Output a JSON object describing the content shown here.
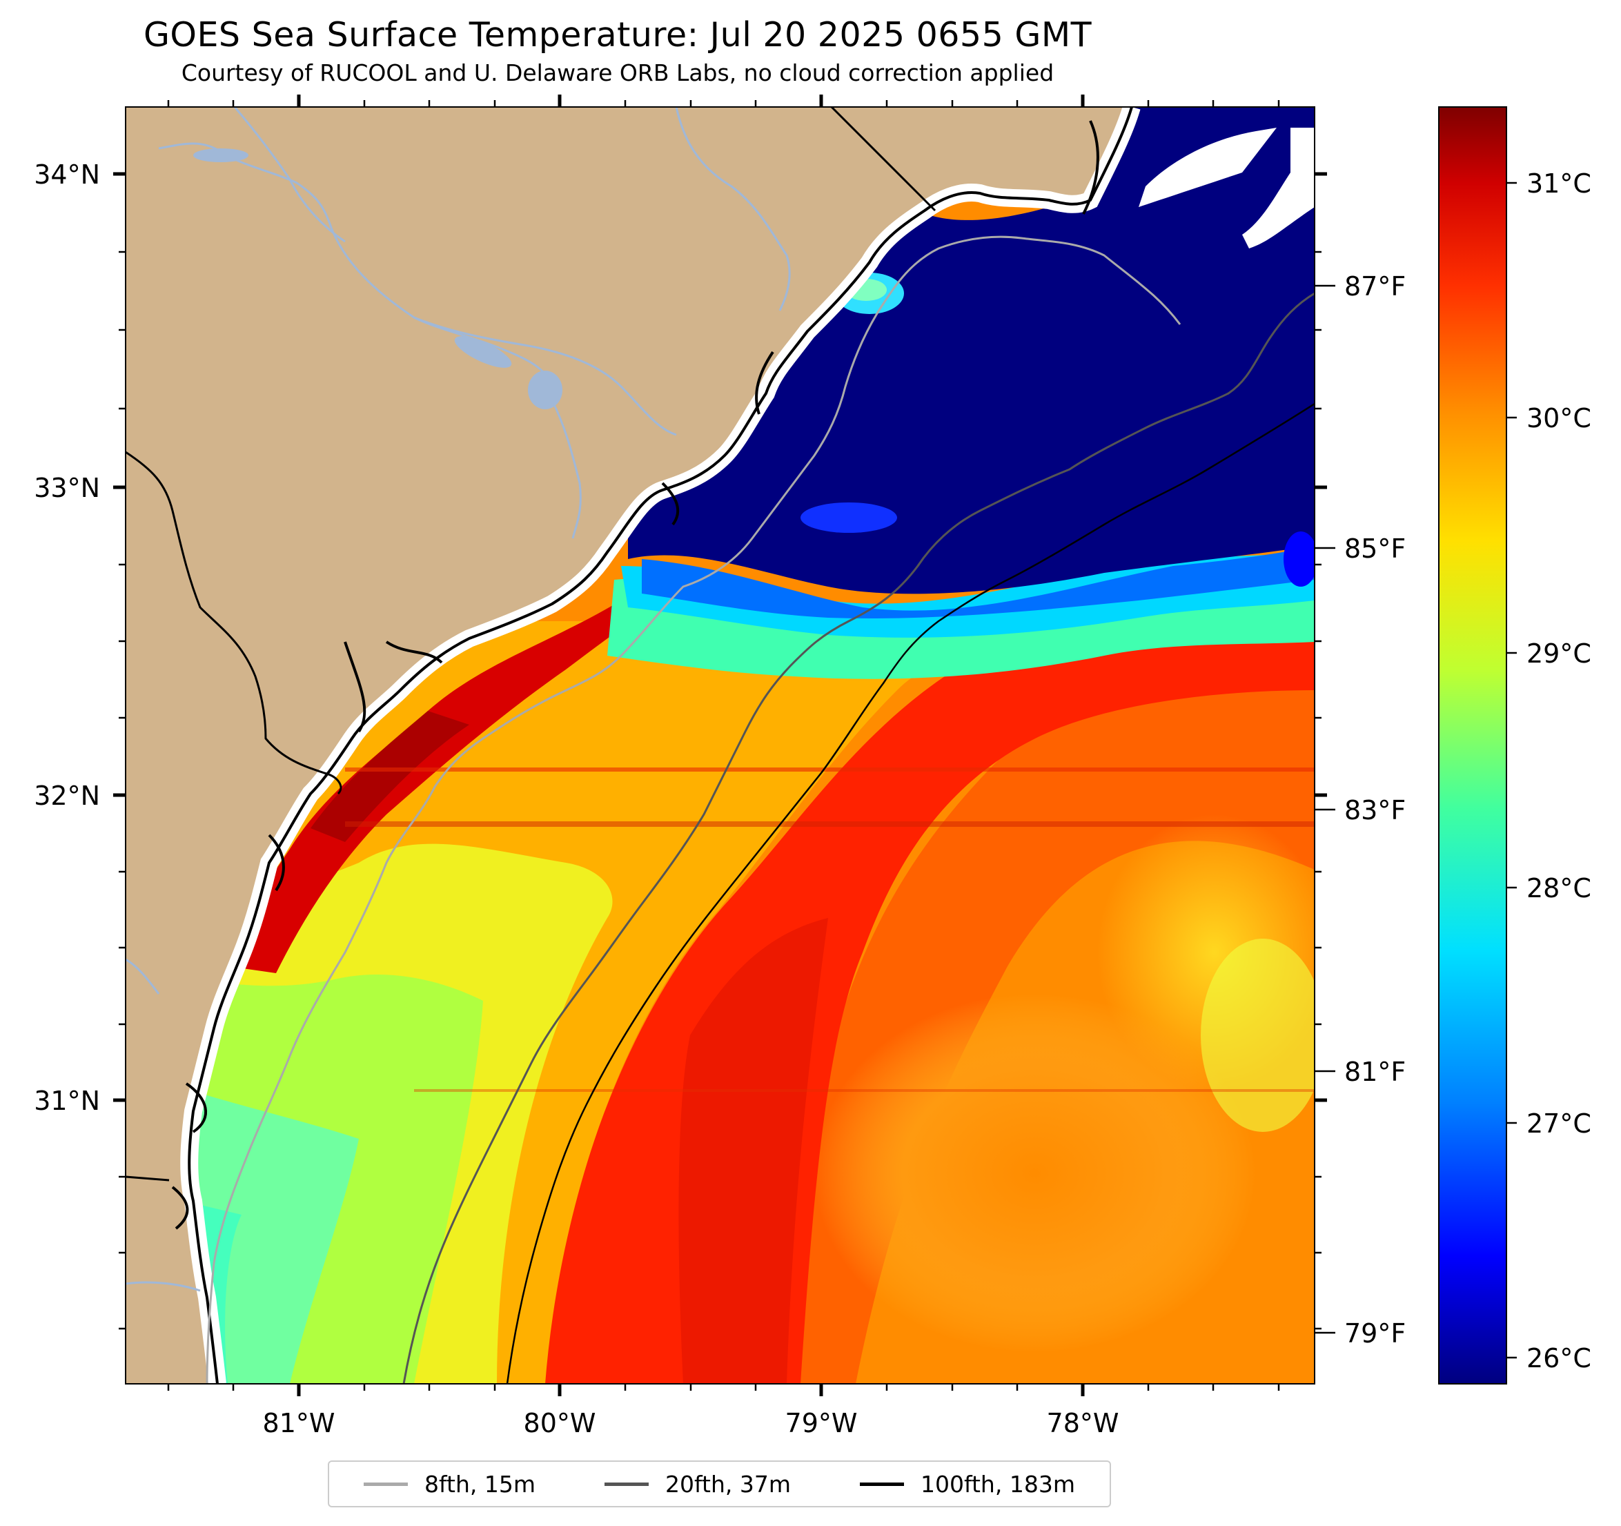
{
  "title": "GOES Sea Surface Temperature: Jul 20 2025 0655 GMT",
  "subtitle": "Courtesy of RUCOOL and U. Delaware ORB Labs, no cloud correction applied",
  "map": {
    "lat_labels": [
      "34°N",
      "33°N",
      "32°N",
      "31°N"
    ],
    "lon_labels": [
      "81°W",
      "80°W",
      "79°W",
      "78°W"
    ],
    "f_labels": [
      "87°F",
      "85°F",
      "83°F",
      "81°F",
      "79°F"
    ],
    "colors": {
      "land": "#d2b48c",
      "cold": "#00007f",
      "gulfstream": "#ff2200",
      "warm": "#ff8a00",
      "nodata": "#ffffff"
    }
  },
  "colorbar": {
    "labels": [
      "31°C",
      "30°C",
      "29°C",
      "28°C",
      "27°C",
      "26°C"
    ],
    "stops": [
      "#00007f",
      "#0000ff",
      "#0080ff",
      "#00e0ff",
      "#40ff9f",
      "#c0ff30",
      "#ffe000",
      "#ff9000",
      "#ff3000",
      "#d00000",
      "#7f0000"
    ]
  },
  "legend": [
    {
      "label": "8fth, 15m",
      "color": "#aaaaaa"
    },
    {
      "label": "20fth, 37m",
      "color": "#555555"
    },
    {
      "label": "100fth, 183m",
      "color": "#000000"
    }
  ]
}
